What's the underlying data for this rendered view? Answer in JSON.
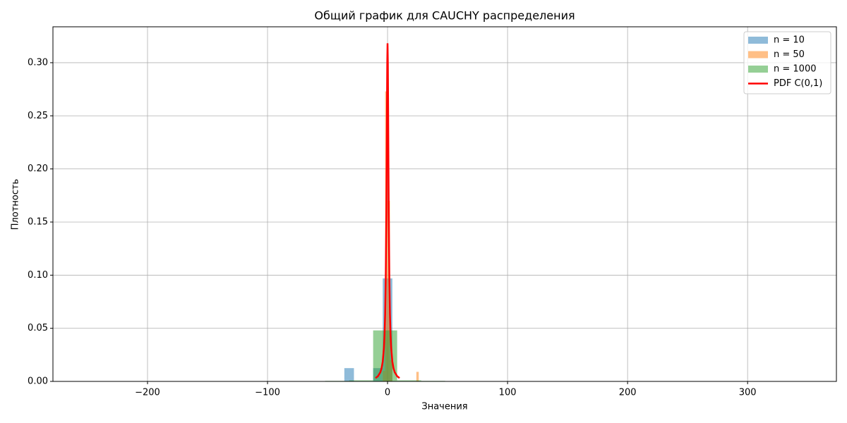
{
  "chart_data": {
    "type": "histogram",
    "title": "Общий график для CAUCHY распределения",
    "xlabel": "Значения",
    "ylabel": "Плотность",
    "xlim": [
      -278.8,
      374
    ],
    "ylim": [
      0,
      0.3338
    ],
    "xticks": [
      {
        "value": -200,
        "label": "−200"
      },
      {
        "value": -100,
        "label": "−100"
      },
      0,
      100,
      200,
      300
    ],
    "yticks": [
      {
        "value": 0,
        "label": "0.00"
      },
      {
        "value": 0.05,
        "label": "0.05"
      },
      {
        "value": 0.1,
        "label": "0.10"
      },
      {
        "value": 0.15,
        "label": "0.15"
      },
      {
        "value": 0.2,
        "label": "0.20"
      },
      {
        "value": 0.25,
        "label": "0.25"
      },
      {
        "value": 0.3,
        "label": "0.30"
      }
    ],
    "grid": true,
    "legend": "upper right",
    "series": [
      {
        "name": "n = 10",
        "type": "histogram",
        "color": "#1f77b4",
        "alpha": 0.5,
        "bins": [
          -36,
          -28,
          -20,
          -12,
          -4,
          4
        ],
        "values": [
          0.0125,
          0,
          0,
          0.0125,
          0.097
        ]
      },
      {
        "name": "n = 50",
        "type": "histogram",
        "color": "#ff7f0e",
        "alpha": 0.5,
        "bins": [
          -4,
          -2,
          0,
          2,
          4,
          6,
          8,
          10,
          12,
          14,
          16,
          18,
          20,
          22,
          24,
          26
        ],
        "values": [
          0.01,
          0.273,
          0.17,
          0.02,
          0,
          0,
          0,
          0,
          0,
          0,
          0,
          0,
          0,
          0,
          0.009
        ]
      },
      {
        "name": "n = 1000",
        "type": "histogram",
        "color": "#2ca02c",
        "alpha": 0.5,
        "bins": [
          -52,
          -32,
          -12,
          8,
          28,
          48
        ],
        "values": [
          0.0005,
          0.001,
          0.048,
          0.001,
          0.0005
        ]
      },
      {
        "name": "PDF C(0,1)",
        "type": "line",
        "color": "#ff0000",
        "x": [
          -10,
          -8,
          -6,
          -5,
          -4,
          -3,
          -2.5,
          -2,
          -1.5,
          -1,
          -0.75,
          -0.5,
          -0.25,
          0,
          0.25,
          0.5,
          0.75,
          1,
          1.5,
          2,
          2.5,
          3,
          4,
          5,
          6,
          8,
          10
        ],
        "values": [
          0.00315,
          0.0049,
          0.0086,
          0.01224,
          0.01872,
          0.03183,
          0.0439,
          0.06366,
          0.09794,
          0.15915,
          0.20372,
          0.25465,
          0.29958,
          0.31831,
          0.29958,
          0.25465,
          0.20372,
          0.15915,
          0.09794,
          0.06366,
          0.0439,
          0.03183,
          0.01872,
          0.01224,
          0.0086,
          0.0049,
          0.00315
        ]
      }
    ]
  }
}
